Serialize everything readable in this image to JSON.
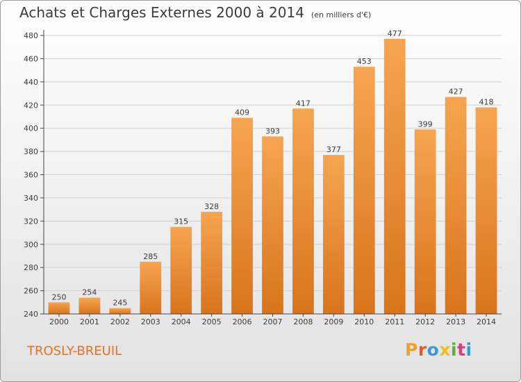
{
  "chart_data": {
    "type": "bar",
    "title": "Achats et Charges Externes 2000 à 2014",
    "unit": "(en milliers d'€)",
    "categories": [
      "2000",
      "2001",
      "2002",
      "2003",
      "2004",
      "2005",
      "2006",
      "2007",
      "2008",
      "2009",
      "2010",
      "2011",
      "2012",
      "2013",
      "2014"
    ],
    "values": [
      250,
      254,
      245,
      285,
      315,
      328,
      409,
      393,
      417,
      377,
      453,
      477,
      399,
      427,
      418
    ],
    "ylim": [
      240,
      480
    ],
    "yticks": [
      240,
      260,
      280,
      300,
      320,
      340,
      360,
      380,
      400,
      420,
      440,
      460,
      480
    ],
    "grid": true,
    "colors": {
      "bar_top": "#f6a550",
      "bar_bottom": "#d9741c",
      "grid": "#d0d0d0",
      "text": "#3b3b3b"
    }
  },
  "footer": {
    "commune": "TROSLY-BREUIL",
    "brand": "Proxiti",
    "brand_colors": [
      "#f0a030",
      "#e05a2a",
      "#3a9ad9",
      "#f0c020",
      "#5ab030",
      "#e03a7a",
      "#3a9ad9"
    ]
  }
}
